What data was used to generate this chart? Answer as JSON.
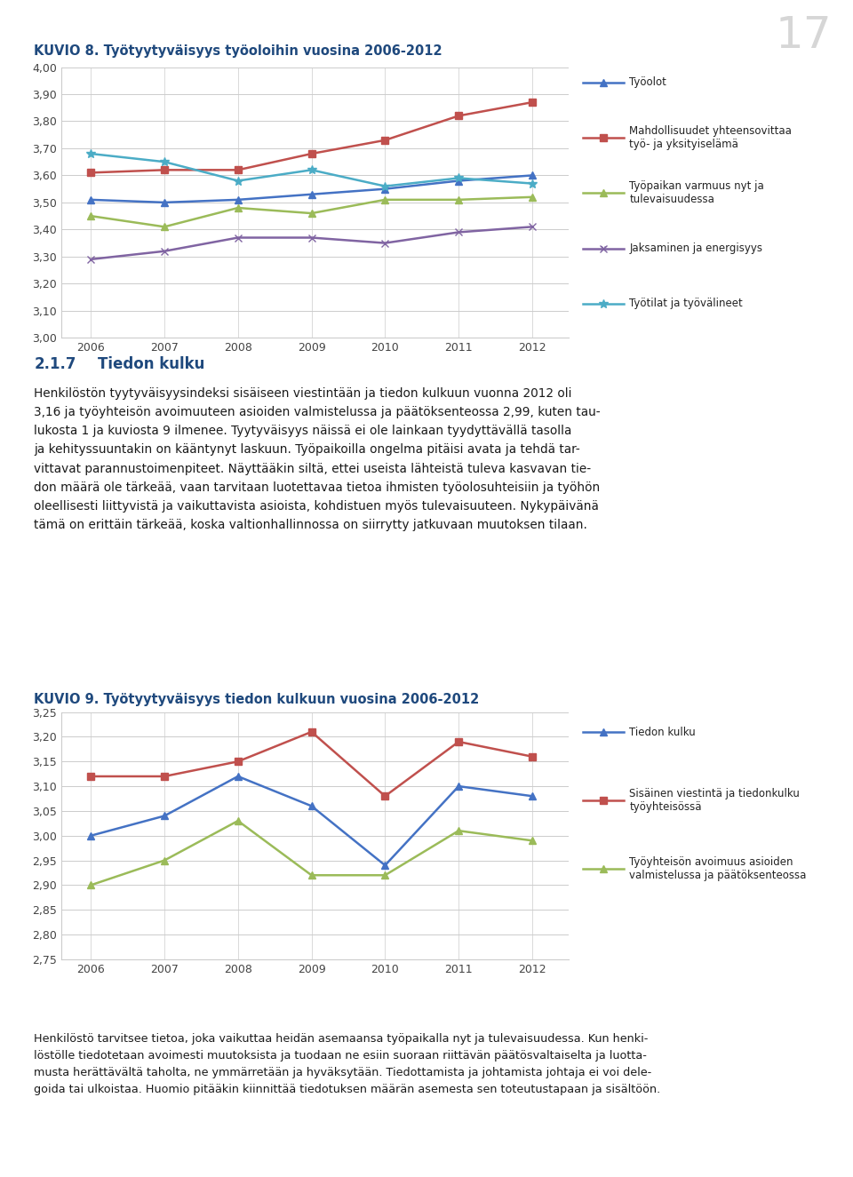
{
  "page_number": "17",
  "fig1_title": "KUVIO 8. Työtyytyväisyys työoloihin vuosina 2006-2012",
  "fig1_years": [
    2006,
    2007,
    2008,
    2009,
    2010,
    2011,
    2012
  ],
  "fig1_series": [
    {
      "name": "Työolot",
      "values": [
        3.51,
        3.5,
        3.51,
        3.53,
        3.55,
        3.58,
        3.6
      ],
      "color": "#4472C4",
      "marker": "^"
    },
    {
      "name": "Mahdollisuudet yhteensovittaa\ntyö- ja yksityiselämä",
      "values": [
        3.61,
        3.62,
        3.62,
        3.68,
        3.73,
        3.82,
        3.87
      ],
      "color": "#C0504D",
      "marker": "s"
    },
    {
      "name": "Työpaikan varmuus nyt ja\ntulevaisuudessa",
      "values": [
        3.45,
        3.41,
        3.48,
        3.46,
        3.51,
        3.51,
        3.52
      ],
      "color": "#9BBB59",
      "marker": "^"
    },
    {
      "name": "Jaksaminen ja energisyys",
      "values": [
        3.29,
        3.32,
        3.37,
        3.37,
        3.35,
        3.39,
        3.41
      ],
      "color": "#8064A2",
      "marker": "x"
    },
    {
      "name": "Työtilat ja työvälineet",
      "values": [
        3.68,
        3.65,
        3.58,
        3.62,
        3.56,
        3.59,
        3.57
      ],
      "color": "#4BACC6",
      "marker": "*"
    }
  ],
  "fig1_ylim": [
    3.0,
    4.0
  ],
  "fig1_yticks": [
    3.0,
    3.1,
    3.2,
    3.3,
    3.4,
    3.5,
    3.6,
    3.7,
    3.8,
    3.9,
    4.0
  ],
  "fig2_title": "KUVIO 9. Työtyytyväisyys tiedon kulkuun vuosina 2006-2012",
  "fig2_years": [
    2006,
    2007,
    2008,
    2009,
    2010,
    2011,
    2012
  ],
  "fig2_series": [
    {
      "name": "Tiedon kulku",
      "values": [
        3.0,
        3.04,
        3.12,
        3.06,
        2.94,
        3.1,
        3.08
      ],
      "color": "#4472C4",
      "marker": "^"
    },
    {
      "name": "Sisäinen viestintä ja tiedonkulku\ntyöyhteisössä",
      "values": [
        3.12,
        3.12,
        3.15,
        3.21,
        3.08,
        3.19,
        3.16
      ],
      "color": "#C0504D",
      "marker": "s"
    },
    {
      "name": "Työyhteisön avoimuus asioiden\nvalmistelussa ja päätöksenteossa",
      "values": [
        2.9,
        2.95,
        3.03,
        2.92,
        2.92,
        3.01,
        2.99
      ],
      "color": "#9BBB59",
      "marker": "^"
    }
  ],
  "fig2_ylim": [
    2.75,
    3.25
  ],
  "fig2_yticks": [
    2.75,
    2.8,
    2.85,
    2.9,
    2.95,
    3.0,
    3.05,
    3.1,
    3.15,
    3.2,
    3.25
  ],
  "section_num": "2.1.7",
  "section_heading": "Tiedon kulku",
  "body_text": "Henkilöstön tyytyväisyysindeksi sisäiseen viestintään ja tiedon kulkuun vuonna 2012 oli\n3,16 ja työyhteisön avoimuuteen asioiden valmistelussa ja päätöksenteossa 2,99, kuten tau-\nlukosta 1 ja kuviosta 9 ilmenee. Tyytyväisyys näissä ei ole lainkaan tyydyttävällä tasolla\nja kehityssuuntakin on kääntynyt laskuun. Työpaikoilla ongelma pitäisi avata ja tehdä tar-\nvittavat parannustoimenpiteet. Näyttääkin siltä, ettei useista lähteistä tuleva kasvavan tie-\ndon määrä ole tärkeää, vaan tarvitaan luotettavaa tietoa ihmisten työolosuhteisiin ja työhön\noleellisesti liittyvistä ja vaikuttavista asioista, kohdistuen myös tulevaisuuteen. Nykypäivänä\ntämä on erittäin tärkeää, koska valtionhallinnossa on siirrytty jatkuvaan muutoksen tilaan.",
  "footer_text": "Henkilöstö tarvitsee tietoa, joka vaikuttaa heidän asemaansa työpaikalla nyt ja tulevaisuudessa. Kun henki-\nlöstölle tiedotetaan avoimesti muutoksista ja tuodaan ne esiin suoraan riittävän päätösvaltaiselta ja luotta-\nmusta herättävältä taholta, ne ymmärretään ja hyväksytään. Tiedottamista ja johtamista johtaja ei voi dele-\ngoida tai ulkoistaa. Huomio pitääkin kiinnittää tiedotuksen määrän asemesta sen toteutustapaan ja sisältöön.",
  "title_color": "#1F497D",
  "text_color": "#1A1A1A",
  "bg_color": "#FFFFFF",
  "grid_color": "#CCCCCC",
  "footer_bg": "#B8CCE4",
  "page_num_color": "#BBBBBB"
}
